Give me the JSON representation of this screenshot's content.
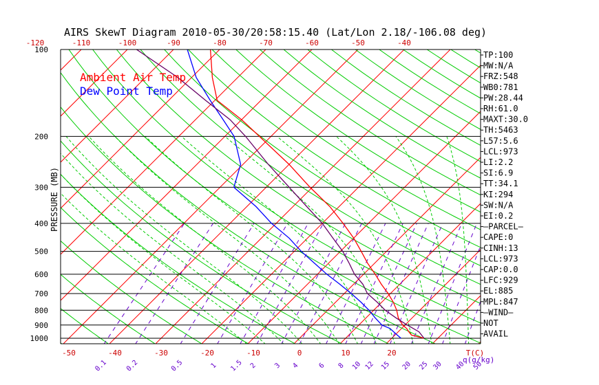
{
  "chart_data": {
    "type": "line",
    "title": "AIRS SkewT Diagram 2010-05-30/20:58:15.40 (Lat/Lon 2.18/-106.08 deg)",
    "ylabel": "PRESSURE (MB)",
    "xlabel": "T(C)",
    "mixing_ratio_unit": "q(g/kg)",
    "legend": [
      {
        "name": "Ambient Air Temp",
        "color": "#ff0000"
      },
      {
        "name": "Dew Point Temp",
        "color": "#0000ff"
      }
    ],
    "pressure_ticks": [
      100,
      200,
      300,
      400,
      500,
      600,
      700,
      800,
      900,
      1000
    ],
    "bottom_temp_ticks": [
      -50,
      -40,
      -30,
      -20,
      -10,
      0,
      10,
      20
    ],
    "top_temp_ticks": [
      -120,
      -110,
      -100,
      -90,
      -80,
      -70,
      -60,
      -50,
      -40
    ],
    "mixing_ratio_labels": [
      "0.1",
      "0.2",
      "0.5",
      "1",
      "1.5",
      "2",
      "3",
      "4",
      "6",
      "8",
      "10",
      "12",
      "15",
      "20",
      "25",
      "30",
      "40",
      "50"
    ],
    "ylim": [
      1000,
      100
    ],
    "series": [
      {
        "name": "Ambient Air Temp",
        "color": "#ff0000",
        "points": [
          {
            "p": 1000,
            "t": 27.0
          },
          {
            "p": 975,
            "t": 23.6
          },
          {
            "p": 950,
            "t": 22.3
          },
          {
            "p": 925,
            "t": 21.1
          },
          {
            "p": 900,
            "t": 19.5
          },
          {
            "p": 850,
            "t": 17.0
          },
          {
            "p": 800,
            "t": 15.0
          },
          {
            "p": 750,
            "t": 12.5
          },
          {
            "p": 700,
            "t": 9.5
          },
          {
            "p": 650,
            "t": 6.0
          },
          {
            "p": 600,
            "t": 2.5
          },
          {
            "p": 550,
            "t": -1.5
          },
          {
            "p": 500,
            "t": -5.5
          },
          {
            "p": 450,
            "t": -10.0
          },
          {
            "p": 400,
            "t": -15.5
          },
          {
            "p": 350,
            "t": -22.0
          },
          {
            "p": 300,
            "t": -30.5
          },
          {
            "p": 250,
            "t": -40.0
          },
          {
            "p": 200,
            "t": -52.5
          },
          {
            "p": 175,
            "t": -60.0
          },
          {
            "p": 150,
            "t": -69.5
          },
          {
            "p": 125,
            "t": -75.5
          },
          {
            "p": 100,
            "t": -82.0
          }
        ]
      },
      {
        "name": "Dew Point Temp",
        "color": "#0000ff",
        "points": [
          {
            "p": 1000,
            "t": 22.0
          },
          {
            "p": 975,
            "t": 20.5
          },
          {
            "p": 950,
            "t": 19.0
          },
          {
            "p": 925,
            "t": 17.5
          },
          {
            "p": 900,
            "t": 15.0
          },
          {
            "p": 850,
            "t": 12.0
          },
          {
            "p": 800,
            "t": 9.0
          },
          {
            "p": 750,
            "t": 5.5
          },
          {
            "p": 700,
            "t": 1.5
          },
          {
            "p": 650,
            "t": -3.0
          },
          {
            "p": 600,
            "t": -8.0
          },
          {
            "p": 550,
            "t": -13.0
          },
          {
            "p": 500,
            "t": -18.5
          },
          {
            "p": 450,
            "t": -24.0
          },
          {
            "p": 400,
            "t": -31.0
          },
          {
            "p": 350,
            "t": -38.0
          },
          {
            "p": 300,
            "t": -47.0
          },
          {
            "p": 250,
            "t": -50.5
          },
          {
            "p": 200,
            "t": -58.0
          },
          {
            "p": 175,
            "t": -64.0
          },
          {
            "p": 150,
            "t": -71.0
          },
          {
            "p": 125,
            "t": -79.0
          },
          {
            "p": 100,
            "t": -87.0
          }
        ]
      },
      {
        "name": "",
        "color": "#660066",
        "points": [
          {
            "p": 1000,
            "t": 27.0
          },
          {
            "p": 950,
            "t": 24.5
          },
          {
            "p": 900,
            "t": 20.5
          },
          {
            "p": 850,
            "t": 16.5
          },
          {
            "p": 800,
            "t": 12.5
          },
          {
            "p": 750,
            "t": 9.0
          },
          {
            "p": 700,
            "t": 5.0
          },
          {
            "p": 650,
            "t": 2.0
          },
          {
            "p": 600,
            "t": -2.0
          },
          {
            "p": 550,
            "t": -5.5
          },
          {
            "p": 500,
            "t": -9.5
          },
          {
            "p": 450,
            "t": -14.5
          },
          {
            "p": 400,
            "t": -20.0
          },
          {
            "p": 350,
            "t": -27.0
          },
          {
            "p": 300,
            "t": -35.0
          },
          {
            "p": 250,
            "t": -44.5
          },
          {
            "p": 200,
            "t": -55.5
          },
          {
            "p": 175,
            "t": -62.5
          },
          {
            "p": 150,
            "t": -72.0
          },
          {
            "p": 125,
            "t": -83.0
          },
          {
            "p": 100,
            "t": -98.0
          }
        ]
      }
    ],
    "colors": {
      "isotherm": "#ff0000",
      "dry_adiabat": "#00cc00",
      "moist_adiabat": "#00cc00",
      "mixing_ratio": "#6600cc",
      "temperature": "#ff0000",
      "dewpoint": "#0000ff",
      "parcel": "#660066",
      "axis": "#000000"
    }
  },
  "indices": [
    "TP:100",
    "MW:N/A",
    "FRZ:548",
    "WB0:781",
    "PW:28.44",
    "RH:61.0",
    "MAXT:30.0",
    "TH:5463",
    "L57:5.6",
    "LCL:973",
    "LI:2.2",
    "SI:6.9",
    "TT:34.1",
    "KI:294",
    "SW:N/A",
    "EI:0.2",
    "—PARCEL—",
    "CAPE:0",
    "CINH:13",
    "LCL:973",
    "CAP:0.0",
    "LFC:929",
    "EL:885",
    "MPL:847",
    "—WIND—",
    "NOT",
    "AVAIL"
  ]
}
